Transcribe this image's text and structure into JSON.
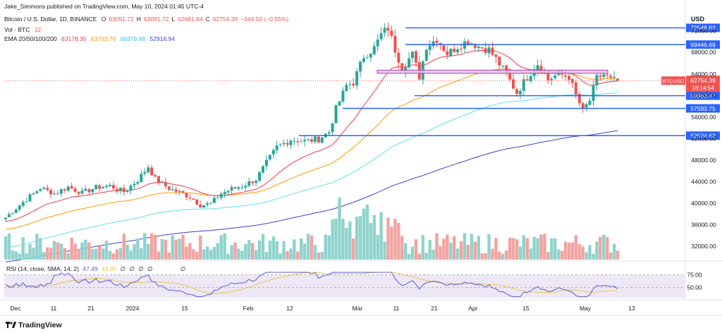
{
  "header": {
    "published": "Jake_Simmons published on TradingView.com, May 10, 2024 01:45 UTC-4",
    "symbol": "Bitcoin / U.S. Dollar, 1D, BINANCE",
    "ohlc": {
      "o_label": "O",
      "o": "63091.72",
      "h_label": "H",
      "h": "63091.72",
      "l_label": "L",
      "l": "62681.84",
      "c_label": "C",
      "c": "62754.39",
      "change": "−344.50 (−0.55%)"
    },
    "vol_label": "Vol · BTC",
    "vol_value": "12",
    "ema_label": "EMA 20/50/100/200",
    "ema_values": [
      "63178.35",
      "63703.76",
      "60379.98",
      "52916.94"
    ]
  },
  "rsi_header": {
    "label": "RSI (14, close, SMA, 14, 2)",
    "v1": "47.49",
    "v2": "43.95",
    "na": [
      "∅",
      "∅",
      "∅",
      "∅",
      "∅"
    ]
  },
  "axis": {
    "currency": "USD",
    "price_ticks": [
      "72000.00",
      "68000.00",
      "64000.00",
      "60000.00",
      "56000.00",
      "52000.00",
      "48000.00",
      "44000.00",
      "40000.00",
      "36000.00",
      "32000.00"
    ],
    "rsi_ticks": [
      "75.00",
      "50.00"
    ],
    "time_labels": [
      "Dec",
      "11",
      "21",
      "2024",
      "15",
      "Feb",
      "12",
      "Mar",
      "11",
      "21",
      "Apr",
      "15",
      "May",
      "13"
    ],
    "timezone": ""
  },
  "levels": [
    {
      "label": "72548.83",
      "value": 72548.83
    },
    {
      "label": "69446.69",
      "value": 69446.69
    },
    {
      "label": "59963.47",
      "value": 59963.47
    },
    {
      "label": "57593.75",
      "value": 57593.75
    },
    {
      "label": "52524.62",
      "value": 52524.62
    }
  ],
  "current": {
    "tag": "BTCUSD",
    "price": "62754.39",
    "countdown": "18:14:54",
    "value": 62754.39
  },
  "zone": {
    "low": 64100,
    "high": 64700
  },
  "colors": {
    "up": "#26a69a",
    "down": "#ef5350",
    "vol_up": "#8fd3cc",
    "vol_down": "#f2a3a1",
    "ema20": "#f23645",
    "ema50": "#ff9800",
    "ema100": "#5ee0ee",
    "ema200": "#3f3fd0",
    "level": "#2962ff",
    "zone_fill": "#e1bee7",
    "zone_border": "#ab47bc",
    "rsi": "#5b5bd6",
    "rsi_ma": "#e8c547",
    "rsi_band": "#ede7f6",
    "tag": "#ef5350"
  },
  "brand": "TradingView",
  "chart_data": {
    "type": "candlestick",
    "title": "Bitcoin / U.S. Dollar, 1D, BINANCE",
    "y_range": [
      29500,
      75500
    ],
    "candles_summary": "Daily BTCUSD from late Nov 2023 to May 10 2024",
    "anchors": [
      [
        0,
        37300
      ],
      [
        5,
        40200
      ],
      [
        10,
        42800
      ],
      [
        14,
        41800
      ],
      [
        18,
        43000
      ],
      [
        22,
        41900
      ],
      [
        26,
        42900
      ],
      [
        30,
        43200
      ],
      [
        34,
        42100
      ],
      [
        38,
        44300
      ],
      [
        41,
        46800
      ],
      [
        43,
        44500
      ],
      [
        47,
        42700
      ],
      [
        50,
        42000
      ],
      [
        53,
        41200
      ],
      [
        56,
        39600
      ],
      [
        59,
        39900
      ],
      [
        62,
        41800
      ],
      [
        65,
        42600
      ],
      [
        68,
        43200
      ],
      [
        72,
        44400
      ],
      [
        75,
        47500
      ],
      [
        78,
        50400
      ],
      [
        82,
        51800
      ],
      [
        86,
        51500
      ],
      [
        90,
        51900
      ],
      [
        93,
        53200
      ],
      [
        95,
        57500
      ],
      [
        98,
        61800
      ],
      [
        100,
        62400
      ],
      [
        103,
        67300
      ],
      [
        106,
        68800
      ],
      [
        108,
        71300
      ],
      [
        110,
        72500
      ],
      [
        112,
        68500
      ],
      [
        114,
        65200
      ],
      [
        117,
        67600
      ],
      [
        119,
        63500
      ],
      [
        121,
        69200
      ],
      [
        124,
        70500
      ],
      [
        127,
        67800
      ],
      [
        130,
        69100
      ],
      [
        133,
        70200
      ],
      [
        136,
        69100
      ],
      [
        139,
        68500
      ],
      [
        141,
        66800
      ],
      [
        144,
        63900
      ],
      [
        147,
        60500
      ],
      [
        150,
        63400
      ],
      [
        153,
        65900
      ],
      [
        156,
        62900
      ],
      [
        159,
        64000
      ],
      [
        162,
        63500
      ],
      [
        164,
        60000
      ],
      [
        166,
        57100
      ],
      [
        168,
        59100
      ],
      [
        170,
        63200
      ],
      [
        172,
        63900
      ],
      [
        174,
        62900
      ],
      [
        176,
        62754
      ]
    ]
  }
}
